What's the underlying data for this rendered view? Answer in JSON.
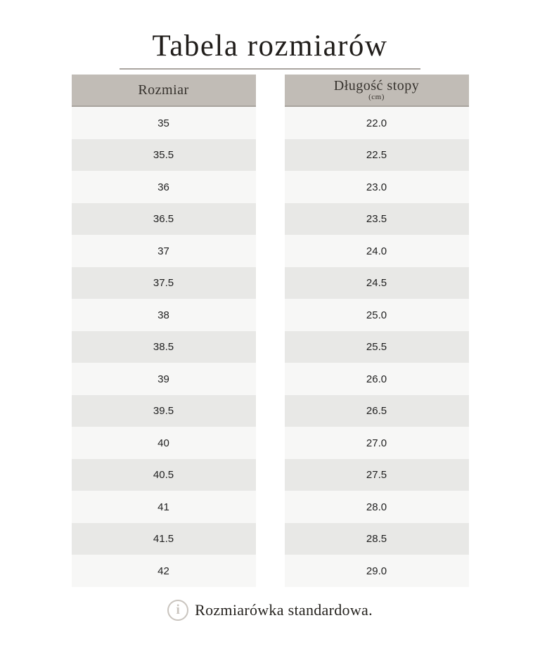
{
  "page": {
    "title": "Tabela rozmiarów",
    "footer_note": "Rozmiarówka standardowa.",
    "info_icon_glyph": "i"
  },
  "table": {
    "columns": [
      {
        "header": "Rozmiar",
        "subheader": ""
      },
      {
        "header": "Długość stopy",
        "subheader": "(cm)"
      }
    ],
    "rows": [
      {
        "size": "35",
        "length": "22.0"
      },
      {
        "size": "35.5",
        "length": "22.5"
      },
      {
        "size": "36",
        "length": "23.0"
      },
      {
        "size": "36.5",
        "length": "23.5"
      },
      {
        "size": "37",
        "length": "24.0"
      },
      {
        "size": "37.5",
        "length": "24.5"
      },
      {
        "size": "38",
        "length": "25.0"
      },
      {
        "size": "38.5",
        "length": "25.5"
      },
      {
        "size": "39",
        "length": "26.0"
      },
      {
        "size": "39.5",
        "length": "26.5"
      },
      {
        "size": "40",
        "length": "27.0"
      },
      {
        "size": "40.5",
        "length": "27.5"
      },
      {
        "size": "41",
        "length": "28.0"
      },
      {
        "size": "41.5",
        "length": "28.5"
      },
      {
        "size": "42",
        "length": "29.0"
      }
    ]
  },
  "colors": {
    "header_bg": "#c1bcb6",
    "header_border": "#a8a39d",
    "row_light": "#f7f7f6",
    "row_dark": "#e8e8e6",
    "rule": "#a9a49e",
    "icon": "#c9c4be"
  }
}
